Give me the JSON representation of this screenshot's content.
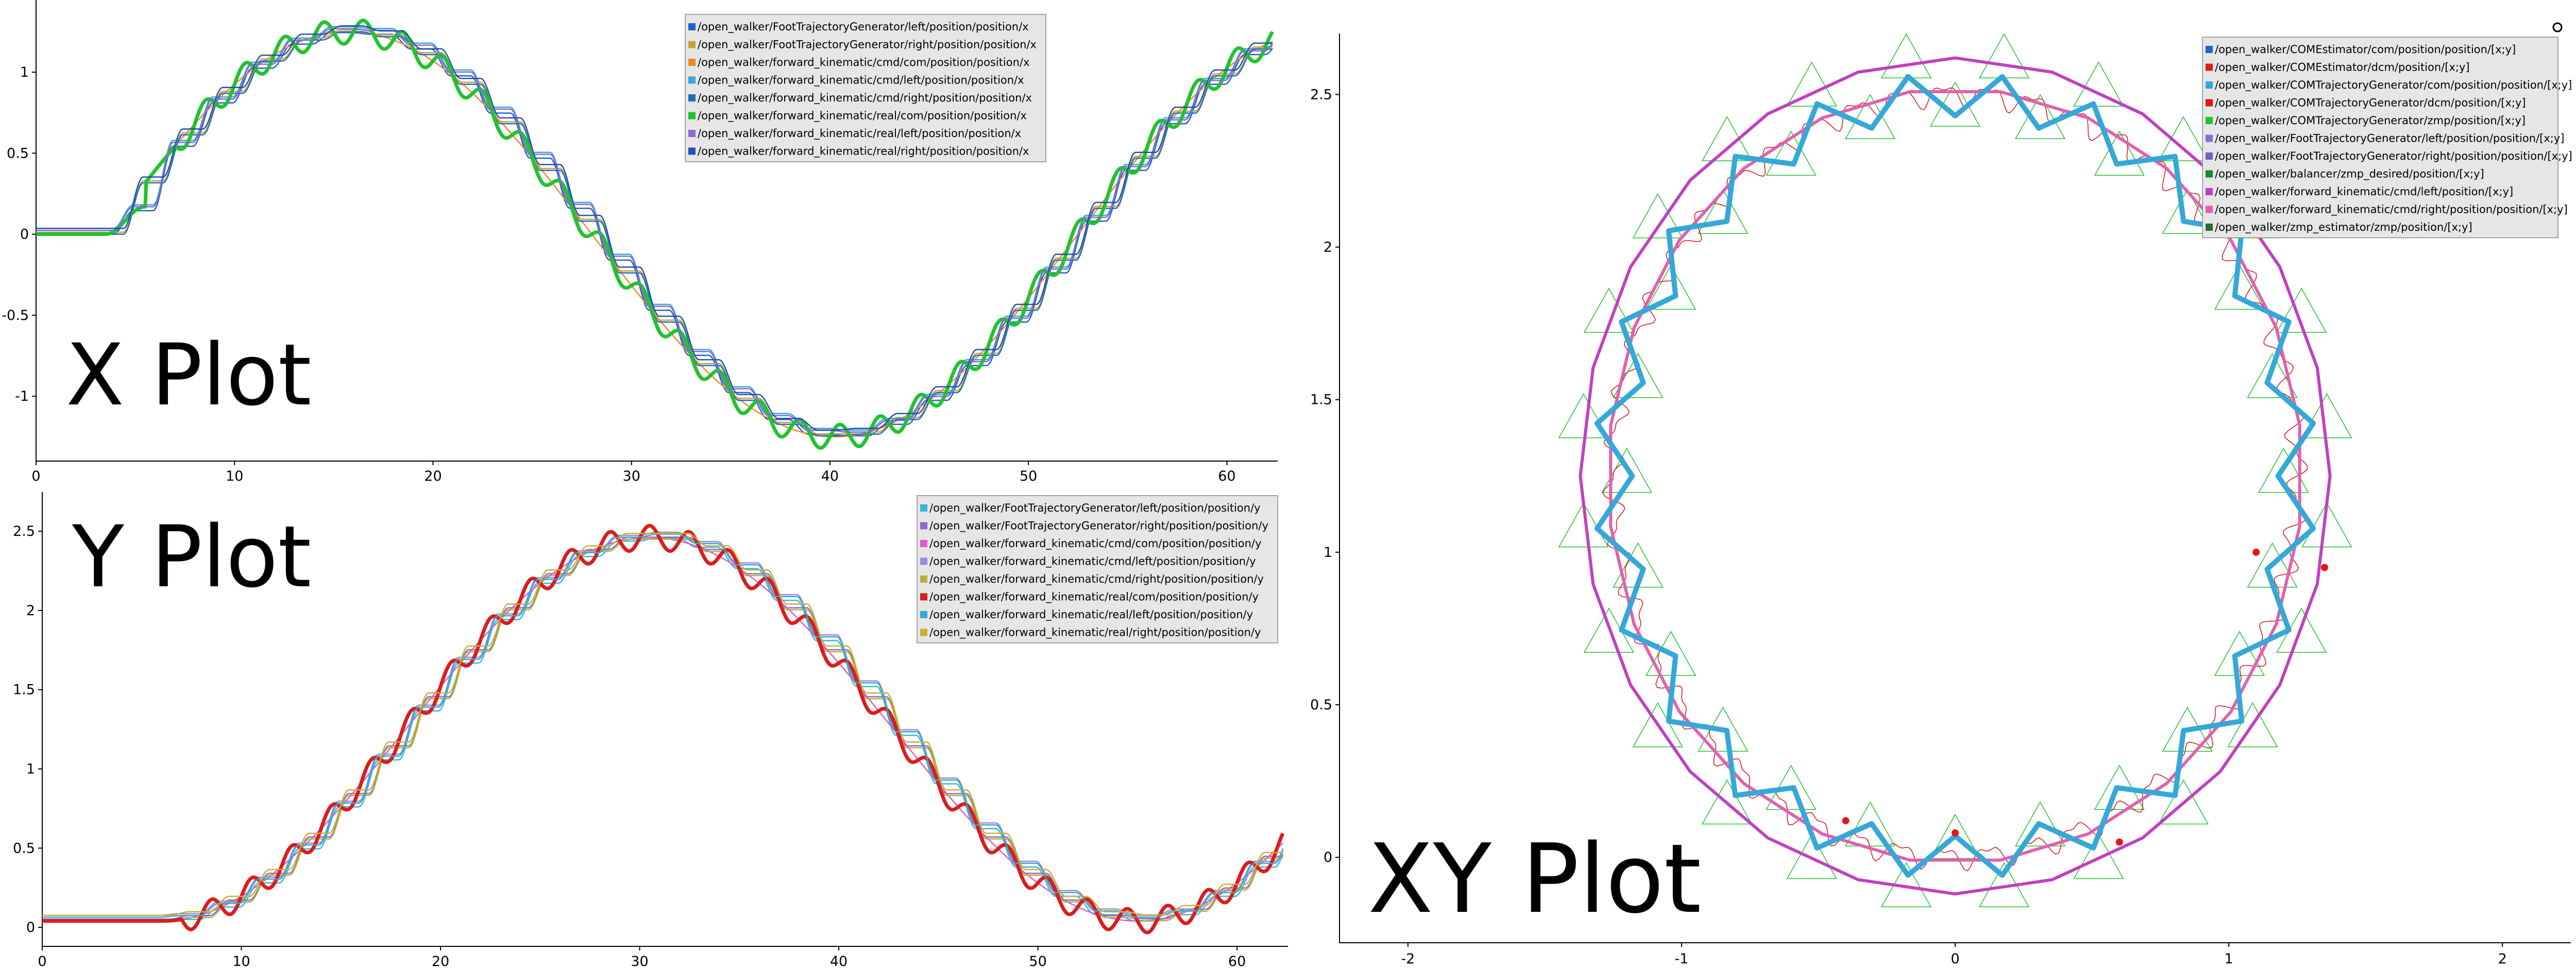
{
  "chart_data": [
    {
      "type": "line",
      "title": "X Plot",
      "xlim": [
        0,
        62.3
      ],
      "ylim": [
        -1.4,
        1.35
      ],
      "xticks": [
        0,
        10,
        20,
        30,
        40,
        50,
        60
      ],
      "yticks": [
        -1,
        -0.5,
        0,
        0.5,
        1
      ],
      "legend_position": "top-right",
      "grid": false,
      "series": [
        {
          "name": "/open_walker/FootTrajectoryGenerator/left/position/position/x",
          "color": "#1f63c6",
          "kind": "stair",
          "phase": 0.0
        },
        {
          "name": "/open_walker/FootTrajectoryGenerator/right/position/position/x",
          "color": "#c9a33a",
          "kind": "stair",
          "phase": 0.5
        },
        {
          "name": "/open_walker/forward_kinematic/cmd/com/position/position/x",
          "color": "#f08a1f",
          "kind": "smooth"
        },
        {
          "name": "/open_walker/forward_kinematic/cmd/left/position/position/x",
          "color": "#35a8d8",
          "kind": "stair",
          "phase": 0.0
        },
        {
          "name": "/open_walker/forward_kinematic/cmd/right/position/position/x",
          "color": "#1d6fb8",
          "kind": "stair",
          "phase": 0.5
        },
        {
          "name": "/open_walker/forward_kinematic/real/com/position/position/x",
          "color": "#22c22e",
          "kind": "wavy"
        },
        {
          "name": "/open_walker/forward_kinematic/real/left/position/position/x",
          "color": "#8a6ad0",
          "kind": "stair",
          "phase": 0.0
        },
        {
          "name": "/open_walker/forward_kinematic/real/right/position/position/x",
          "color": "#2050b8",
          "kind": "stair",
          "phase": 0.5
        }
      ]
    },
    {
      "type": "line",
      "title": "Y Plot",
      "xlim": [
        0,
        62.3
      ],
      "ylim": [
        -0.12,
        2.65
      ],
      "xticks": [
        0,
        10,
        20,
        30,
        40,
        50,
        60
      ],
      "yticks": [
        0,
        0.5,
        1,
        1.5,
        2,
        2.5
      ],
      "legend_position": "top-right",
      "grid": false,
      "series": [
        {
          "name": "/open_walker/FootTrajectoryGenerator/left/position/position/y",
          "color": "#35b8d8",
          "kind": "stair",
          "phase": 0.0
        },
        {
          "name": "/open_walker/FootTrajectoryGenerator/right/position/position/y",
          "color": "#8a6ad0",
          "kind": "stair",
          "phase": 0.5
        },
        {
          "name": "/open_walker/forward_kinematic/cmd/com/position/position/y",
          "color": "#e05ac8",
          "kind": "smooth"
        },
        {
          "name": "/open_walker/forward_kinematic/cmd/left/position/position/y",
          "color": "#9a8ad8",
          "kind": "stair",
          "phase": 0.0
        },
        {
          "name": "/open_walker/forward_kinematic/cmd/right/position/position/y",
          "color": "#b8b03a",
          "kind": "stair",
          "phase": 0.5
        },
        {
          "name": "/open_walker/forward_kinematic/real/com/position/position/y",
          "color": "#d81e1e",
          "kind": "wavy"
        },
        {
          "name": "/open_walker/forward_kinematic/real/left/position/position/y",
          "color": "#35a8d8",
          "kind": "stair",
          "phase": 0.0
        },
        {
          "name": "/open_walker/forward_kinematic/real/right/position/position/y",
          "color": "#c9b030",
          "kind": "stair",
          "phase": 0.5
        }
      ]
    },
    {
      "type": "scatter",
      "title": "XY Plot",
      "xlim": [
        -2.25,
        2.25
      ],
      "ylim": [
        -0.28,
        2.7
      ],
      "xticks": [
        -2,
        -1,
        0,
        1,
        2
      ],
      "yticks": [
        0,
        0.5,
        1,
        1.5,
        2,
        2.5
      ],
      "legend_position": "top-right",
      "grid": false,
      "circle_center": [
        0,
        1.25
      ],
      "circle_radius": 1.25,
      "series": [
        {
          "name": "/open_walker/COMEstimator/com/position/position/[x;y]",
          "color": "#1f63c6"
        },
        {
          "name": "/open_walker/COMEstimator/dcm/position/[x;y]",
          "color": "#d81e1e"
        },
        {
          "name": "/open_walker/COMTrajectoryGenerator/com/position/position/[x;y]",
          "color": "#35a8d8"
        },
        {
          "name": "/open_walker/COMTrajectoryGenerator/dcm/position/[x;y]",
          "color": "#e01818"
        },
        {
          "name": "/open_walker/COMTrajectoryGenerator/zmp/position/[x;y]",
          "color": "#22c22e"
        },
        {
          "name": "/open_walker/FootTrajectoryGenerator/left/position/position/[x;y]",
          "color": "#8a6ad0"
        },
        {
          "name": "/open_walker/FootTrajectoryGenerator/right/position/position/[x;y]",
          "color": "#7a5ac8"
        },
        {
          "name": "/open_walker/balancer/zmp_desired/position/[x;y]",
          "color": "#1a8a2a"
        },
        {
          "name": "/open_walker/forward_kinematic/cmd/left/position/[x;y]",
          "color": "#c040c0"
        },
        {
          "name": "/open_walker/forward_kinematic/cmd/right/position/position/[x;y]",
          "color": "#e060b0"
        },
        {
          "name": "/open_walker/zmp_estimator/zmp/position/[x;y]",
          "color": "#2a6a3a"
        }
      ]
    }
  ]
}
